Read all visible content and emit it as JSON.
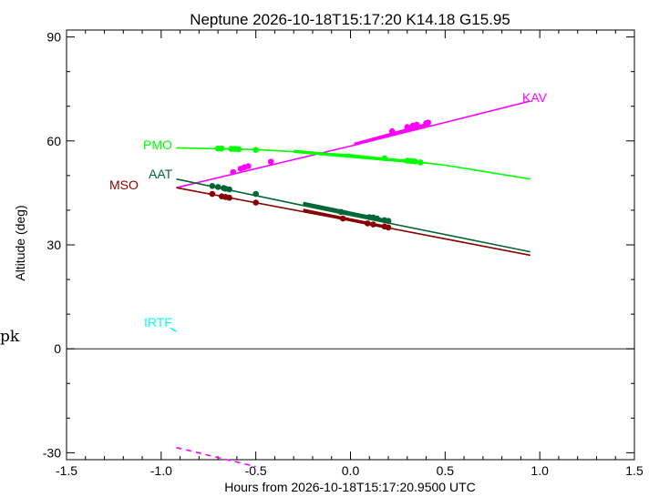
{
  "chart_data": {
    "type": "line",
    "title": "Neptune 2026-10-18T15:17:20  K14.18  G15.95",
    "xlabel": "Hours from 2026-10-18T15:17:20.9500 UTC",
    "ylabel": "Altitude (deg)",
    "xlim": [
      -1.5,
      1.5
    ],
    "ylim": [
      -32,
      92
    ],
    "xticks": [
      -1.5,
      -1.0,
      -0.5,
      0.0,
      0.5,
      1.0,
      1.5
    ],
    "xtick_labels": [
      "-1.5",
      "-1.0",
      "-0.5",
      "0.0",
      "0.5",
      "1.0",
      "1.5"
    ],
    "yticks": [
      -30,
      0,
      30,
      60,
      90
    ],
    "ytick_labels": [
      "-30",
      "0",
      "30",
      "60",
      "90"
    ],
    "zero_line": true,
    "grid": false,
    "edge_text": "pk",
    "series": [
      {
        "name": "KAV",
        "color": "#ff00ff",
        "x": [
          -0.92,
          0.0,
          0.95
        ],
        "y": [
          46.5,
          58.5,
          71.5
        ],
        "points_x": [
          -0.62,
          -0.58,
          -0.56,
          -0.54,
          -0.42,
          0.22,
          0.3,
          0.33,
          0.35,
          0.4,
          0.41
        ],
        "points_y": [
          51.0,
          52.0,
          52.4,
          52.7,
          54.0,
          62.8,
          64.0,
          64.4,
          64.7,
          65.1,
          65.3
        ],
        "bold_x": [
          0.02,
          0.42
        ],
        "bold_y": [
          59.0,
          65.0
        ]
      },
      {
        "name": "PMO",
        "color": "#00ff00",
        "x": [
          -0.92,
          -0.5,
          0.0,
          0.5,
          0.95
        ],
        "y": [
          58.0,
          57.5,
          56.0,
          53.0,
          49.0
        ],
        "points_x": [
          -0.7,
          -0.68,
          -0.63,
          -0.61,
          -0.59,
          -0.5,
          0.18,
          0.3,
          0.32,
          0.34,
          0.37
        ],
        "points_y": [
          57.8,
          57.8,
          57.7,
          57.7,
          57.6,
          57.4,
          55.0,
          54.3,
          54.2,
          54.1,
          53.8
        ],
        "bold_x": [
          -0.3,
          0.37
        ],
        "bold_y": [
          57.0,
          53.8
        ]
      },
      {
        "name": "AAT",
        "color": "#006633",
        "x": [
          -0.92,
          0.0,
          0.95
        ],
        "y": [
          49.0,
          38.5,
          28.0
        ],
        "points_x": [
          -0.73,
          -0.7,
          -0.67,
          -0.66,
          -0.64,
          -0.5,
          -0.05,
          0.1,
          0.12,
          0.14,
          0.18,
          0.2
        ],
        "points_y": [
          47.0,
          46.7,
          46.4,
          46.2,
          46.0,
          44.7,
          39.5,
          38.0,
          37.9,
          37.6,
          37.1,
          36.9
        ],
        "bold_x": [
          -0.25,
          0.2
        ],
        "bold_y": [
          42.0,
          36.9
        ]
      },
      {
        "name": "MSO",
        "color": "#880000",
        "x": [
          -0.92,
          0.0,
          0.95
        ],
        "y": [
          46.5,
          37.0,
          27.0
        ],
        "points_x": [
          -0.73,
          -0.68,
          -0.66,
          -0.64,
          -0.5,
          -0.04,
          0.09,
          0.12,
          0.18,
          0.2
        ],
        "points_y": [
          44.7,
          44.0,
          43.8,
          43.6,
          42.2,
          37.6,
          36.2,
          35.9,
          35.3,
          35.0
        ],
        "bold_x": [
          -0.25,
          0.2
        ],
        "bold_y": [
          40.0,
          35.0
        ]
      },
      {
        "name": "IRTF",
        "color": "#00ffff",
        "x": [
          -0.95,
          -0.92
        ],
        "y": [
          6.0,
          5.0
        ],
        "points_x": [],
        "points_y": [],
        "bold_x": [],
        "bold_y": []
      }
    ],
    "dashed_series": [
      {
        "color": "#ff00ff",
        "x": [
          -0.92,
          -0.5
        ],
        "y": [
          -28.5,
          -34.0
        ]
      }
    ]
  }
}
